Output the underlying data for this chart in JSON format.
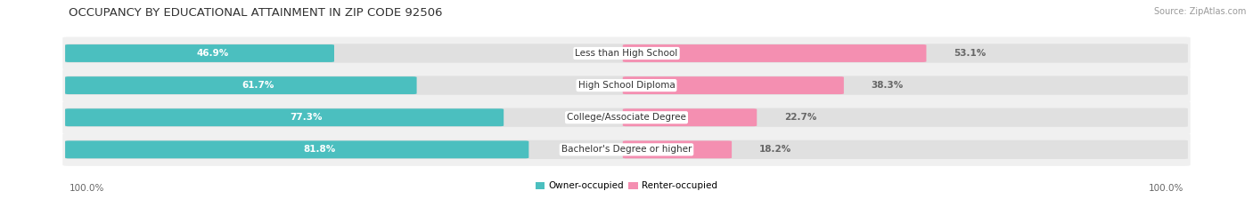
{
  "title": "OCCUPANCY BY EDUCATIONAL ATTAINMENT IN ZIP CODE 92506",
  "source": "Source: ZipAtlas.com",
  "categories": [
    "Less than High School",
    "High School Diploma",
    "College/Associate Degree",
    "Bachelor's Degree or higher"
  ],
  "owner_values": [
    46.9,
    61.7,
    77.3,
    81.8
  ],
  "renter_values": [
    53.1,
    38.3,
    22.7,
    18.2
  ],
  "owner_color": "#4BBFBF",
  "renter_color": "#F48FB1",
  "bar_bg_color": "#E0E0E0",
  "row_bg_color": "#F0F0F0",
  "title_fontsize": 9.5,
  "source_fontsize": 7,
  "pct_fontsize": 7.5,
  "cat_fontsize": 7.5,
  "legend_fontsize": 7.5,
  "legend_label_owner": "Owner-occupied",
  "legend_label_renter": "Renter-occupied",
  "axis_label": "100.0%"
}
